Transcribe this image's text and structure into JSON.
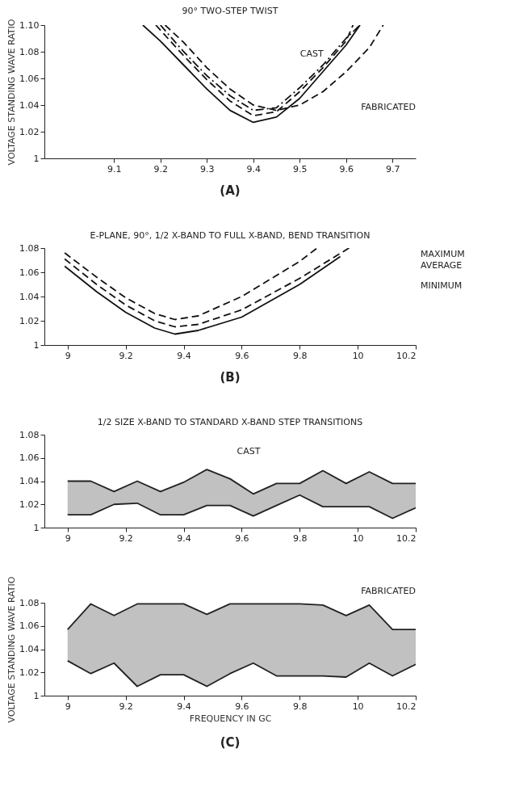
{
  "chart_data": [
    {
      "type": "line",
      "title": "90° TWO-STEP TWIST",
      "ylabel": "VOLTAGE STANDING WAVE RATIO",
      "annotations": [
        "CAST",
        "FABRICATED",
        "(A)"
      ],
      "xlim": [
        8.95,
        9.75
      ],
      "xticks": [
        9.1,
        9.2,
        9.3,
        9.4,
        9.5,
        9.6,
        9.7
      ],
      "ylim": [
        1,
        1.1
      ],
      "yticks": [
        1,
        1.02,
        1.04,
        1.06,
        1.08,
        {
          "value": 1.1,
          "label": "1.10"
        }
      ],
      "grid": false,
      "series": [
        {
          "color": "#111111",
          "line_style": "solid",
          "x": [
            9.162,
            9.2,
            9.25,
            9.3,
            9.35,
            9.4,
            9.45,
            9.5,
            9.55,
            9.6,
            9.63
          ],
          "values": [
            1.1,
            1.088,
            1.07,
            1.052,
            1.036,
            1.027,
            1.031,
            1.045,
            1.065,
            1.085,
            1.1
          ]
        },
        {
          "color": "#111111",
          "line_style": "dashed",
          "x": [
            9.19,
            9.25,
            9.3,
            9.35,
            9.4,
            9.45,
            9.5,
            9.55,
            9.6,
            9.615
          ],
          "values": [
            1.1,
            1.077,
            1.059,
            1.043,
            1.032,
            1.035,
            1.05,
            1.068,
            1.088,
            1.1
          ]
        },
        {
          "color": "#111111",
          "line_style": "dashdot",
          "x": [
            9.2,
            9.25,
            9.3,
            9.35,
            9.4,
            9.45,
            9.5,
            9.55,
            9.6,
            9.63
          ],
          "values": [
            1.1,
            1.08,
            1.062,
            1.047,
            1.036,
            1.038,
            1.053,
            1.07,
            1.09,
            1.1
          ]
        },
        {
          "color": "#111111",
          "line_style": "dashed",
          "x": [
            9.21,
            9.25,
            9.3,
            9.35,
            9.4,
            9.45,
            9.5,
            9.55,
            9.6,
            9.65,
            9.68
          ],
          "values": [
            1.1,
            1.087,
            1.068,
            1.052,
            1.04,
            1.036,
            1.04,
            1.05,
            1.065,
            1.083,
            1.1
          ]
        }
      ]
    },
    {
      "type": "line",
      "title": "E-PLANE, 90°, 1/2 X-BAND TO FULL X-BAND, BEND TRANSITION",
      "annotations": [
        "(B)"
      ],
      "xlim": [
        8.92,
        10.2
      ],
      "xticks": [
        9,
        9.2,
        9.4,
        9.6,
        9.8,
        10,
        10.2
      ],
      "ylim": [
        1,
        1.08
      ],
      "yticks": [
        1,
        1.02,
        1.04,
        1.06,
        1.08
      ],
      "grid": false,
      "series": [
        {
          "name": "MAXIMUM",
          "color": "#111111",
          "line_style": "dashed",
          "x": [
            8.99,
            9.1,
            9.2,
            9.3,
            9.37,
            9.45,
            9.6,
            9.8,
            9.86
          ],
          "values": [
            1.076,
            1.056,
            1.039,
            1.026,
            1.021,
            1.024,
            1.04,
            1.069,
            1.08
          ]
        },
        {
          "name": "AVERAGE",
          "color": "#111111",
          "line_style": "dashed",
          "x": [
            8.99,
            9.1,
            9.2,
            9.3,
            9.37,
            9.45,
            9.6,
            9.8,
            9.97
          ],
          "values": [
            1.071,
            1.05,
            1.033,
            1.02,
            1.015,
            1.017,
            1.029,
            1.055,
            1.08
          ]
        },
        {
          "name": "MINIMUM",
          "color": "#111111",
          "line_style": "solid",
          "x": [
            8.99,
            9.1,
            9.2,
            9.3,
            9.37,
            9.45,
            9.6,
            9.8,
            9.94
          ],
          "values": [
            1.065,
            1.044,
            1.027,
            1.014,
            1.009,
            1.012,
            1.023,
            1.05,
            1.073
          ]
        }
      ]
    },
    {
      "type": "line",
      "title": "1/2 SIZE X-BAND TO STANDARD X-BAND STEP TRANSITIONS",
      "xlim": [
        8.92,
        10.2
      ],
      "xticks": [
        9,
        9.2,
        9.4,
        9.6,
        9.8,
        10,
        10.2
      ],
      "ylim": [
        1,
        1.08
      ],
      "yticks": [
        1,
        1.02,
        1.04,
        1.06,
        1.08
      ],
      "grid": false,
      "x": [
        9,
        9.08,
        9.16,
        9.24,
        9.32,
        9.4,
        9.48,
        9.56,
        9.64,
        9.72,
        9.8,
        9.88,
        9.96,
        10.04,
        10.12,
        10.2
      ],
      "series": [
        {
          "name": "CAST",
          "color": "#222222",
          "values": [
            1.04,
            1.04,
            1.031,
            1.04,
            1.031,
            1.039,
            1.05,
            1.042,
            1.029,
            1.038,
            1.038,
            1.049,
            1.038,
            1.048,
            1.038,
            1.038
          ],
          "lower": [
            1.011,
            1.011,
            1.02,
            1.021,
            1.011,
            1.011,
            1.019,
            1.019,
            1.01,
            1.019,
            1.028,
            1.018,
            1.018,
            1.018,
            1.008,
            1.017
          ],
          "upper": [
            1.04,
            1.04,
            1.031,
            1.04,
            1.031,
            1.039,
            1.05,
            1.042,
            1.029,
            1.038,
            1.038,
            1.049,
            1.038,
            1.048,
            1.038,
            1.038
          ]
        },
        {
          "color": "#222222",
          "values": [
            1.011,
            1.011,
            1.02,
            1.021,
            1.011,
            1.011,
            1.019,
            1.019,
            1.01,
            1.019,
            1.028,
            1.018,
            1.018,
            1.018,
            1.008,
            1.017
          ]
        }
      ]
    },
    {
      "type": "line",
      "ylabel": "VOLTAGE STANDING WAVE RATIO",
      "xlabel": "FREQUENCY IN GC",
      "annotations": [
        "(C)"
      ],
      "xlim": [
        8.92,
        10.2
      ],
      "xticks": [
        9,
        9.2,
        9.4,
        9.6,
        9.8,
        10,
        10.2
      ],
      "ylim": [
        1,
        1.08
      ],
      "yticks": [
        1,
        1.02,
        1.04,
        1.06,
        1.08
      ],
      "grid": false,
      "x": [
        9,
        9.08,
        9.16,
        9.24,
        9.32,
        9.4,
        9.48,
        9.56,
        9.64,
        9.72,
        9.8,
        9.88,
        9.96,
        10.04,
        10.12,
        10.2
      ],
      "series": [
        {
          "name": "FABRICATED",
          "color": "#222222",
          "values": [
            1.057,
            1.079,
            1.069,
            1.079,
            1.079,
            1.079,
            1.07,
            1.079,
            1.079,
            1.079,
            1.079,
            1.078,
            1.069,
            1.078,
            1.057,
            1.057
          ],
          "lower": [
            1.03,
            1.019,
            1.028,
            1.008,
            1.018,
            1.018,
            1.008,
            1.019,
            1.028,
            1.017,
            1.017,
            1.017,
            1.016,
            1.028,
            1.017,
            1.027
          ],
          "upper": [
            1.057,
            1.079,
            1.069,
            1.079,
            1.079,
            1.079,
            1.07,
            1.079,
            1.079,
            1.079,
            1.079,
            1.078,
            1.069,
            1.078,
            1.057,
            1.057
          ]
        },
        {
          "color": "#222222",
          "values": [
            1.03,
            1.019,
            1.028,
            1.008,
            1.018,
            1.018,
            1.008,
            1.019,
            1.028,
            1.017,
            1.017,
            1.017,
            1.016,
            1.028,
            1.017,
            1.027
          ]
        }
      ]
    }
  ]
}
